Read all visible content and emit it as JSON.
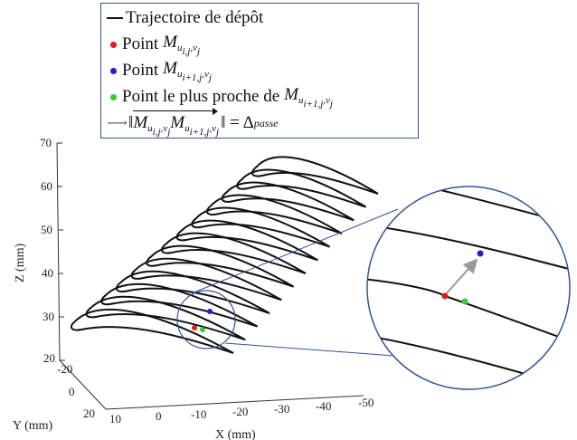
{
  "legend": {
    "trajectory": "Trajectoire de dépôt",
    "point_label": "Point",
    "nearest_label": "Point le plus proche de",
    "point_i_symbol": "M",
    "point_i_sub": "u",
    "point_i_subsub": "i,j",
    "point_i_subtail": ",v",
    "point_i_subj": "j",
    "point_i1_subsub": "i+1,j",
    "norm_prefix": "‖",
    "norm_suffix": "‖ = Δ",
    "norm_delta_sub": "passe"
  },
  "colors": {
    "red_point": "#e31a1c",
    "blue_point": "#1f1fcc",
    "green_point": "#33cc33",
    "trajectory": "#111111",
    "zoom": "#2f5597",
    "arrow": "#999999"
  },
  "axes": {
    "z_title": "Z (mm)",
    "y_title": "Y (mm)",
    "x_title": "X (mm)",
    "z_ticks": [
      "70",
      "60",
      "50",
      "40",
      "30",
      "20"
    ],
    "y_ticks": [
      "-20",
      "0",
      "20"
    ],
    "x_ticks": [
      "10",
      "0",
      "-10",
      "-20",
      "-30",
      "-40",
      "-50"
    ]
  }
}
